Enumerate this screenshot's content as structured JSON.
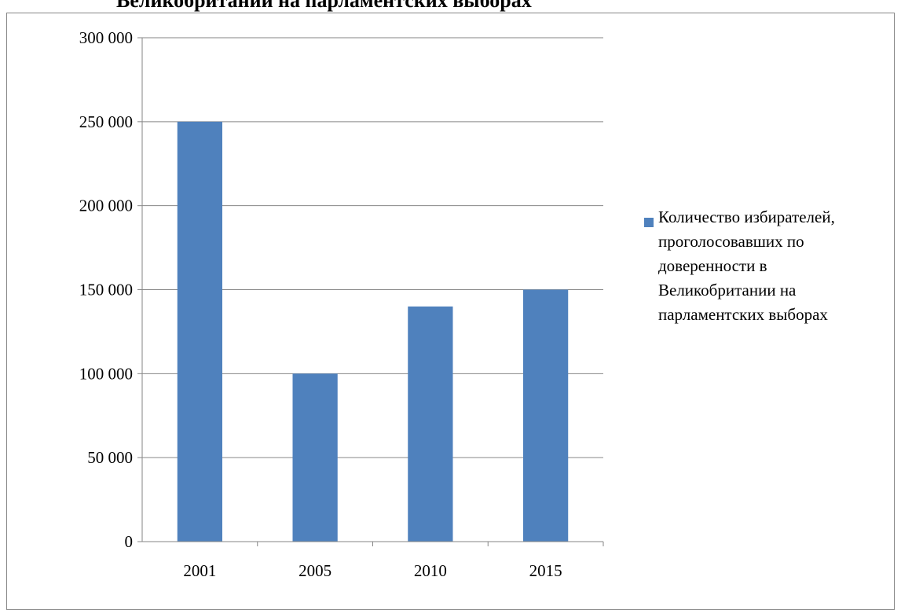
{
  "title": "Великобритании на парламентских выборах",
  "chart_data": {
    "type": "bar",
    "categories": [
      "2001",
      "2005",
      "2010",
      "2015"
    ],
    "series": [
      {
        "name": "Количество избирателей, проголосовавших по доверенности в Великобритании на парламентских выборах",
        "values": [
          250000,
          100000,
          140000,
          150000
        ],
        "color": "#4f81bd"
      }
    ],
    "ylim": [
      0,
      300000
    ],
    "yticks": [
      0,
      50000,
      100000,
      150000,
      200000,
      250000,
      300000
    ],
    "ytick_labels": [
      "0",
      "50 000",
      "100 000",
      "150 000",
      "200 000",
      "250 000",
      "300 000"
    ],
    "grid": true,
    "legend_position": "right"
  }
}
